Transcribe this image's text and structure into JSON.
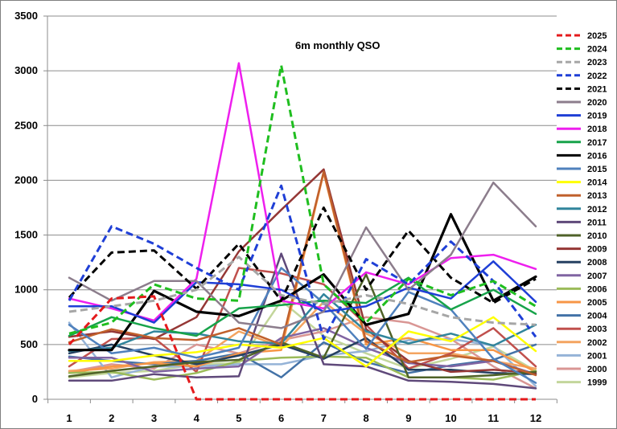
{
  "chart_data": {
    "type": "line",
    "title": "6m monthly QSO",
    "xlabel": "",
    "ylabel": "",
    "ylim": [
      0,
      3500
    ],
    "y_ticks": [
      0,
      500,
      1000,
      1500,
      2000,
      2500,
      3000,
      3500
    ],
    "y_tick_labels": [
      "0",
      "500",
      "1000",
      "1500",
      "2000",
      "2500",
      "3000",
      "3500"
    ],
    "categories": [
      "1",
      "2",
      "3",
      "4",
      "5",
      "6",
      "7",
      "8",
      "9",
      "10",
      "11",
      "12"
    ],
    "grid": "horizontal",
    "legend_position": "right",
    "series": [
      {
        "name": "2025",
        "color": "#e41a1c",
        "dash": "dashed",
        "values": [
          500,
          920,
          940,
          0,
          0,
          0,
          0,
          0,
          0,
          0,
          0,
          0
        ]
      },
      {
        "name": "2024",
        "color": "#1fbe1f",
        "dash": "dashed",
        "values": [
          600,
          700,
          1050,
          920,
          900,
          3050,
          1050,
          700,
          1100,
          950,
          1080,
          850
        ]
      },
      {
        "name": "2023",
        "color": "#a6a6a6",
        "dash": "dashed",
        "values": [
          800,
          850,
          900,
          1000,
          1300,
          950,
          870,
          950,
          870,
          750,
          700,
          680
        ]
      },
      {
        "name": "2022",
        "color": "#1f3fd6",
        "dash": "dashed",
        "values": [
          900,
          1580,
          1420,
          1200,
          1000,
          1950,
          550,
          1280,
          1050,
          1440,
          1080,
          570
        ]
      },
      {
        "name": "2021",
        "color": "#000000",
        "dash": "dashed",
        "values": [
          930,
          1340,
          1360,
          1010,
          1420,
          900,
          1750,
          1000,
          1540,
          1110,
          880,
          1100
        ]
      },
      {
        "name": "2020",
        "color": "#8c7d8c",
        "dash": "solid",
        "values": [
          1110,
          900,
          1080,
          1080,
          700,
          650,
          800,
          1570,
          1000,
          1320,
          1980,
          1580
        ]
      },
      {
        "name": "2019",
        "color": "#1f3fd6",
        "dash": "solid",
        "values": [
          850,
          850,
          700,
          1070,
          1050,
          1000,
          800,
          850,
          1020,
          920,
          1260,
          890
        ]
      },
      {
        "name": "2018",
        "color": "#ee1fee",
        "dash": "solid",
        "values": [
          920,
          830,
          720,
          1100,
          3070,
          900,
          830,
          1160,
          1050,
          1290,
          1320,
          1190
        ]
      },
      {
        "name": "2017",
        "color": "#17a34a",
        "dash": "solid",
        "values": [
          580,
          750,
          650,
          580,
          830,
          860,
          900,
          880,
          1110,
          820,
          1000,
          780
        ]
      },
      {
        "name": "2016",
        "color": "#000000",
        "dash": "solid",
        "values": [
          450,
          450,
          990,
          800,
          760,
          900,
          1140,
          680,
          780,
          1690,
          900,
          1120
        ]
      },
      {
        "name": "2015",
        "color": "#4f81bd",
        "dash": "solid",
        "values": [
          680,
          420,
          470,
          380,
          470,
          1200,
          880,
          460,
          980,
          820,
          370,
          150
        ]
      },
      {
        "name": "2014",
        "color": "#ffff00",
        "dash": "solid",
        "values": [
          350,
          350,
          400,
          430,
          500,
          470,
          560,
          300,
          620,
          530,
          750,
          440
        ]
      },
      {
        "name": "2013",
        "color": "#c0602c",
        "dash": "solid",
        "values": [
          520,
          640,
          560,
          540,
          650,
          500,
          2080,
          530,
          340,
          400,
          350,
          220
        ]
      },
      {
        "name": "2012",
        "color": "#31859c",
        "dash": "solid",
        "values": [
          440,
          470,
          620,
          600,
          530,
          510,
          960,
          620,
          510,
          600,
          490,
          680
        ]
      },
      {
        "name": "2011",
        "color": "#5f497a",
        "dash": "solid",
        "values": [
          170,
          170,
          230,
          200,
          210,
          1330,
          320,
          300,
          170,
          160,
          140,
          100
        ]
      },
      {
        "name": "2010",
        "color": "#4f6228",
        "dash": "solid",
        "values": [
          210,
          260,
          300,
          340,
          360,
          520,
          380,
          1140,
          200,
          200,
          220,
          250
        ]
      },
      {
        "name": "2009",
        "color": "#953735",
        "dash": "solid",
        "values": [
          570,
          620,
          550,
          750,
          1350,
          1730,
          2100,
          640,
          350,
          250,
          270,
          240
        ]
      },
      {
        "name": "2008",
        "color": "#254061",
        "dash": "solid",
        "values": [
          420,
          500,
          400,
          320,
          400,
          500,
          370,
          560,
          270,
          270,
          240,
          230
        ]
      },
      {
        "name": "2007",
        "color": "#8064a2",
        "dash": "solid",
        "values": [
          380,
          380,
          250,
          280,
          300,
          560,
          650,
          470,
          330,
          300,
          350,
          230
        ]
      },
      {
        "name": "2006",
        "color": "#9bbb59",
        "dash": "solid",
        "values": [
          240,
          250,
          180,
          240,
          350,
          380,
          390,
          380,
          200,
          200,
          180,
          260
        ]
      },
      {
        "name": "2005",
        "color": "#f79646",
        "dash": "solid",
        "values": [
          240,
          300,
          330,
          300,
          420,
          450,
          2070,
          500,
          560,
          450,
          450,
          250
        ]
      },
      {
        "name": "2004",
        "color": "#4372a7",
        "dash": "solid",
        "values": [
          390,
          350,
          320,
          350,
          420,
          200,
          520,
          340,
          240,
          310,
          360,
          500
        ]
      },
      {
        "name": "2003",
        "color": "#c0504d",
        "dash": "solid",
        "values": [
          300,
          550,
          560,
          250,
          1200,
          1150,
          1050,
          680,
          280,
          420,
          650,
          300
        ]
      },
      {
        "name": "2002",
        "color": "#f4a460",
        "dash": "solid",
        "values": [
          260,
          280,
          340,
          350,
          620,
          480,
          890,
          600,
          420,
          420,
          350,
          280
        ]
      },
      {
        "name": "2001",
        "color": "#95b3d7",
        "dash": "solid",
        "values": [
          700,
          200,
          300,
          300,
          320,
          320,
          400,
          440,
          540,
          550,
          490,
          120
        ]
      },
      {
        "name": "2000",
        "color": "#d99694",
        "dash": "solid",
        "values": [
          250,
          320,
          280,
          500,
          420,
          540,
          620,
          750,
          700,
          550,
          300,
          100
        ]
      },
      {
        "name": "1999",
        "color": "#c3d69b",
        "dash": "solid",
        "values": [
          200,
          240,
          260,
          320,
          330,
          900,
          580,
          420,
          280,
          370,
          480,
          260
        ]
      }
    ]
  }
}
